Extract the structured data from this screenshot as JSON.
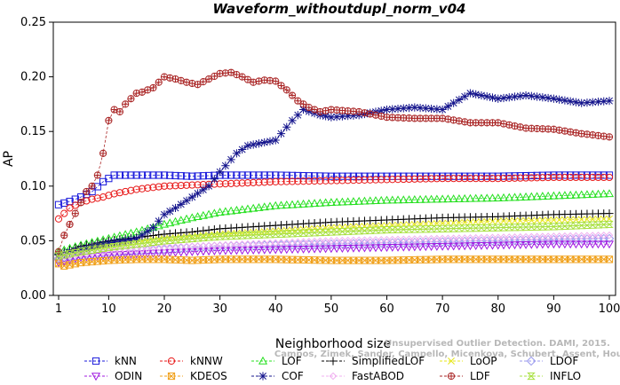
{
  "chart_data": {
    "type": "line",
    "title": "Waveform_withoutdupl_norm_v04",
    "xlabel": "Neighborhood size",
    "ylabel": "AP",
    "xlim": [
      1,
      100
    ],
    "ylim": [
      0,
      0.25
    ],
    "xticks": [
      "1",
      "10",
      "20",
      "30",
      "40",
      "50",
      "60",
      "70",
      "80",
      "90",
      "100"
    ],
    "yticks": [
      "0.00",
      "0.05",
      "0.10",
      "0.15",
      "0.20",
      "0.25"
    ],
    "grid": false,
    "legend_position": "bottom",
    "watermark": "Campos, Zimek, Sander, Campello, Micenkova, Schubert, Assent, Houle",
    "watermark_2": "Unsupervised Outlier Detection. DAMI, 2015.",
    "series": [
      {
        "name": "kNN",
        "color": "#1a1adb",
        "marker": "square",
        "x": [
          1,
          3,
          5,
          7,
          9,
          11,
          15,
          20,
          25,
          30,
          40,
          50,
          60,
          70,
          80,
          90,
          100
        ],
        "y": [
          0.083,
          0.086,
          0.09,
          0.095,
          0.104,
          0.11,
          0.11,
          0.11,
          0.109,
          0.11,
          0.11,
          0.109,
          0.109,
          0.109,
          0.109,
          0.11,
          0.11
        ]
      },
      {
        "name": "kNNW",
        "color": "#e81a1a",
        "marker": "circle",
        "x": [
          1,
          3,
          5,
          7,
          9,
          11,
          15,
          20,
          25,
          30,
          40,
          50,
          60,
          70,
          80,
          90,
          100
        ],
        "y": [
          0.07,
          0.08,
          0.085,
          0.088,
          0.09,
          0.093,
          0.097,
          0.1,
          0.101,
          0.102,
          0.104,
          0.105,
          0.106,
          0.107,
          0.107,
          0.108,
          0.108
        ]
      },
      {
        "name": "LOF",
        "color": "#27e021",
        "marker": "triangle",
        "x": [
          1,
          5,
          10,
          15,
          20,
          25,
          30,
          40,
          50,
          60,
          70,
          80,
          90,
          100
        ],
        "y": [
          0.04,
          0.046,
          0.052,
          0.058,
          0.065,
          0.071,
          0.076,
          0.082,
          0.085,
          0.087,
          0.088,
          0.089,
          0.091,
          0.093
        ]
      },
      {
        "name": "SimplifiedLOF",
        "color": "#000000",
        "marker": "plus",
        "x": [
          1,
          5,
          10,
          15,
          20,
          25,
          30,
          40,
          50,
          60,
          70,
          80,
          90,
          100
        ],
        "y": [
          0.038,
          0.045,
          0.05,
          0.053,
          0.056,
          0.058,
          0.061,
          0.064,
          0.067,
          0.069,
          0.071,
          0.072,
          0.074,
          0.075
        ]
      },
      {
        "name": "LoOP",
        "color": "#e6e61a",
        "marker": "x",
        "x": [
          1,
          5,
          10,
          15,
          20,
          25,
          30,
          40,
          50,
          60,
          70,
          80,
          90,
          100
        ],
        "y": [
          0.036,
          0.042,
          0.046,
          0.049,
          0.052,
          0.054,
          0.056,
          0.059,
          0.062,
          0.064,
          0.066,
          0.068,
          0.069,
          0.07
        ]
      },
      {
        "name": "LDOF",
        "color": "#9999ee",
        "marker": "diamond",
        "x": [
          1,
          5,
          10,
          15,
          20,
          25,
          30,
          40,
          50,
          60,
          70,
          80,
          90,
          100
        ],
        "y": [
          0.034,
          0.037,
          0.039,
          0.041,
          0.042,
          0.044,
          0.045,
          0.046,
          0.047,
          0.048,
          0.049,
          0.05,
          0.051,
          0.052
        ]
      },
      {
        "name": "ODIN",
        "color": "#a01ae0",
        "marker": "triangle-down",
        "x": [
          1,
          5,
          10,
          15,
          20,
          25,
          30,
          40,
          50,
          60,
          70,
          80,
          90,
          100
        ],
        "y": [
          0.03,
          0.035,
          0.037,
          0.038,
          0.039,
          0.04,
          0.041,
          0.042,
          0.043,
          0.044,
          0.045,
          0.046,
          0.047,
          0.047
        ]
      },
      {
        "name": "KDEOS",
        "color": "#f0a01a",
        "marker": "square-x",
        "x": [
          1,
          2,
          5,
          10,
          15,
          20,
          25,
          30,
          40,
          50,
          60,
          70,
          80,
          90,
          100
        ],
        "y": [
          0.029,
          0.027,
          0.03,
          0.032,
          0.033,
          0.033,
          0.032,
          0.033,
          0.033,
          0.032,
          0.032,
          0.033,
          0.033,
          0.033,
          0.033
        ]
      },
      {
        "name": "COF",
        "color": "#14148c",
        "marker": "star",
        "x": [
          1,
          5,
          10,
          15,
          18,
          20,
          22,
          25,
          28,
          30,
          33,
          35,
          38,
          40,
          43,
          45,
          48,
          50,
          55,
          60,
          65,
          70,
          75,
          80,
          85,
          90,
          95,
          100
        ],
        "y": [
          0.037,
          0.042,
          0.048,
          0.052,
          0.062,
          0.074,
          0.08,
          0.09,
          0.1,
          0.113,
          0.13,
          0.137,
          0.14,
          0.142,
          0.16,
          0.17,
          0.165,
          0.163,
          0.165,
          0.17,
          0.172,
          0.17,
          0.185,
          0.18,
          0.183,
          0.18,
          0.176,
          0.178
        ]
      },
      {
        "name": "FastABOD",
        "color": "#f0b0f0",
        "marker": "diamond-small",
        "x": [
          1,
          5,
          10,
          15,
          20,
          25,
          30,
          40,
          50,
          60,
          70,
          80,
          90,
          100
        ],
        "y": [
          0.035,
          0.038,
          0.04,
          0.042,
          0.044,
          0.045,
          0.046,
          0.048,
          0.05,
          0.051,
          0.052,
          0.053,
          0.054,
          0.055
        ]
      },
      {
        "name": "LDF",
        "color": "#aa2626",
        "marker": "circle-plus",
        "x": [
          1,
          2,
          3,
          4,
          5,
          6,
          7,
          8,
          9,
          10,
          11,
          12,
          13,
          14,
          15,
          16,
          17,
          18,
          19,
          20,
          22,
          24,
          26,
          28,
          30,
          32,
          34,
          36,
          38,
          40,
          42,
          44,
          46,
          48,
          50,
          55,
          60,
          65,
          70,
          75,
          80,
          85,
          90,
          95,
          100
        ],
        "y": [
          0.04,
          0.055,
          0.065,
          0.075,
          0.085,
          0.095,
          0.1,
          0.11,
          0.13,
          0.16,
          0.17,
          0.168,
          0.175,
          0.18,
          0.185,
          0.186,
          0.188,
          0.19,
          0.195,
          0.2,
          0.198,
          0.195,
          0.193,
          0.198,
          0.203,
          0.204,
          0.2,
          0.195,
          0.197,
          0.196,
          0.188,
          0.178,
          0.172,
          0.168,
          0.17,
          0.168,
          0.163,
          0.162,
          0.162,
          0.158,
          0.158,
          0.153,
          0.152,
          0.148,
          0.145
        ]
      },
      {
        "name": "INFLO",
        "color": "#a8e040",
        "marker": "hourglass",
        "x": [
          1,
          5,
          10,
          15,
          20,
          25,
          30,
          40,
          50,
          60,
          70,
          80,
          90,
          100
        ],
        "y": [
          0.036,
          0.04,
          0.044,
          0.047,
          0.05,
          0.052,
          0.054,
          0.056,
          0.058,
          0.06,
          0.061,
          0.062,
          0.063,
          0.065
        ]
      }
    ]
  }
}
